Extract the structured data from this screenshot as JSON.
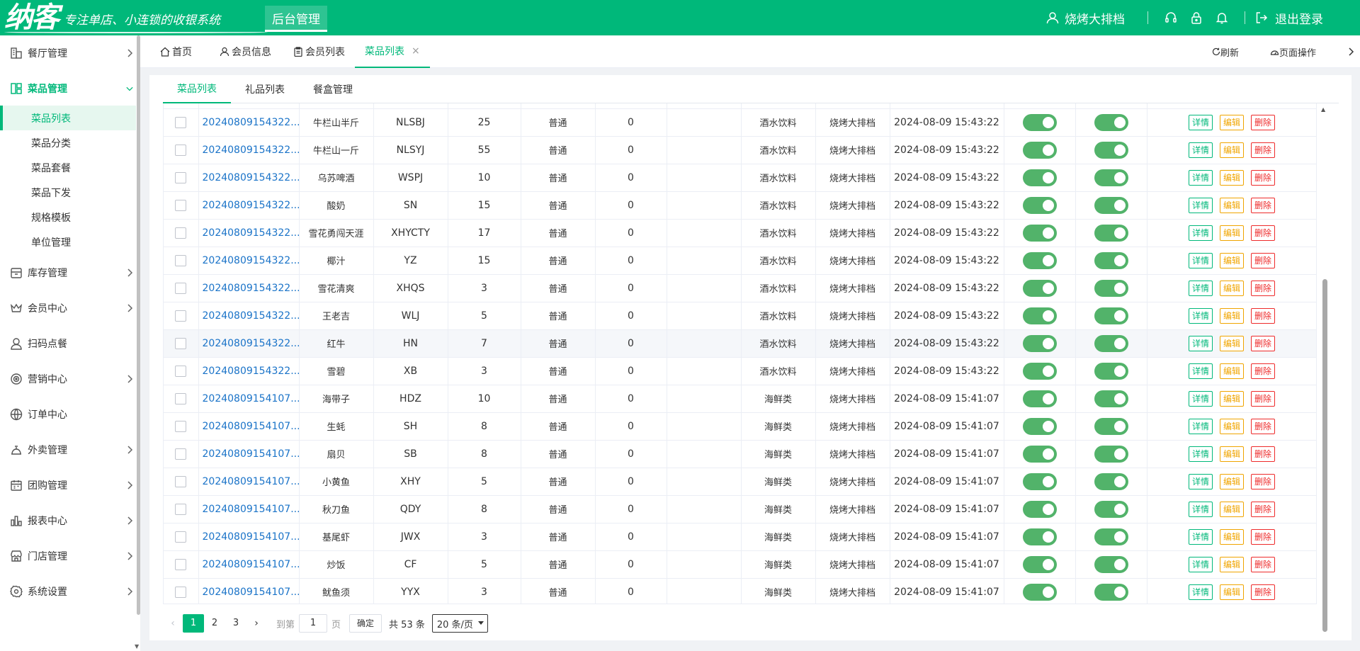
{
  "header": {
    "logo": "纳客",
    "slogan": "专注单店、小连锁的收银系统",
    "admin_label": "后台管理",
    "username": "烧烤大排档",
    "logout": "退出登录"
  },
  "sidebar": {
    "items": [
      {
        "label": "餐厅管理",
        "icon": "building-icon",
        "expanded": false
      },
      {
        "label": "菜品管理",
        "icon": "layout-icon",
        "expanded": true
      },
      {
        "label": "库存管理",
        "icon": "box-icon",
        "expanded": false
      },
      {
        "label": "会员中心",
        "icon": "crown-icon",
        "expanded": false
      },
      {
        "label": "扫码点餐",
        "icon": "user-icon",
        "expanded": false
      },
      {
        "label": "营销中心",
        "icon": "target-icon",
        "expanded": false
      },
      {
        "label": "订单中心",
        "icon": "globe-icon",
        "expanded": false
      },
      {
        "label": "外卖管理",
        "icon": "delivery-icon",
        "expanded": false
      },
      {
        "label": "团购管理",
        "icon": "calendar-icon",
        "expanded": false
      },
      {
        "label": "报表中心",
        "icon": "bar-chart-icon",
        "expanded": false
      },
      {
        "label": "门店管理",
        "icon": "store-icon",
        "expanded": false
      },
      {
        "label": "系统设置",
        "icon": "gear-icon",
        "expanded": false
      }
    ],
    "sub_items": [
      "菜品列表",
      "菜品分类",
      "菜品套餐",
      "菜品下发",
      "规格模板",
      "单位管理"
    ],
    "active_sub": "菜品列表"
  },
  "tabs": {
    "items": [
      {
        "label": "首页",
        "icon": "home-icon"
      },
      {
        "label": "会员信息",
        "icon": "user-icon"
      },
      {
        "label": "会员列表",
        "icon": "clipboard-icon"
      },
      {
        "label": "菜品列表",
        "icon": "",
        "active": true,
        "close": "×"
      }
    ],
    "refresh": "刷新",
    "page_ops": "页面操作"
  },
  "subtabs": [
    "菜品列表",
    "礼品列表",
    "餐盒管理"
  ],
  "table": {
    "rows": [
      {
        "code": "20240809154322...",
        "name": "牛栏山半斤",
        "abbr": "NLSBJ",
        "qty": "25",
        "type": "普通",
        "zero": "0",
        "extra": "",
        "category": "酒水饮料",
        "store": "烧烤大排档",
        "time": "2024-08-09 15:43:22"
      },
      {
        "code": "20240809154322...",
        "name": "牛栏山一斤",
        "abbr": "NLSYJ",
        "qty": "55",
        "type": "普通",
        "zero": "0",
        "extra": "",
        "category": "酒水饮料",
        "store": "烧烤大排档",
        "time": "2024-08-09 15:43:22"
      },
      {
        "code": "20240809154322...",
        "name": "乌苏啤酒",
        "abbr": "WSPJ",
        "qty": "10",
        "type": "普通",
        "zero": "0",
        "extra": "",
        "category": "酒水饮料",
        "store": "烧烤大排档",
        "time": "2024-08-09 15:43:22"
      },
      {
        "code": "20240809154322...",
        "name": "酸奶",
        "abbr": "SN",
        "qty": "15",
        "type": "普通",
        "zero": "0",
        "extra": "",
        "category": "酒水饮料",
        "store": "烧烤大排档",
        "time": "2024-08-09 15:43:22"
      },
      {
        "code": "20240809154322...",
        "name": "雪花勇闯天涯",
        "abbr": "XHYCTY",
        "qty": "17",
        "type": "普通",
        "zero": "0",
        "extra": "",
        "category": "酒水饮料",
        "store": "烧烤大排档",
        "time": "2024-08-09 15:43:22"
      },
      {
        "code": "20240809154322...",
        "name": "椰汁",
        "abbr": "YZ",
        "qty": "15",
        "type": "普通",
        "zero": "0",
        "extra": "",
        "category": "酒水饮料",
        "store": "烧烤大排档",
        "time": "2024-08-09 15:43:22"
      },
      {
        "code": "20240809154322...",
        "name": "雪花清爽",
        "abbr": "XHQS",
        "qty": "3",
        "type": "普通",
        "zero": "0",
        "extra": "",
        "category": "酒水饮料",
        "store": "烧烤大排档",
        "time": "2024-08-09 15:43:22"
      },
      {
        "code": "20240809154322...",
        "name": "王老吉",
        "abbr": "WLJ",
        "qty": "5",
        "type": "普通",
        "zero": "0",
        "extra": "",
        "category": "酒水饮料",
        "store": "烧烤大排档",
        "time": "2024-08-09 15:43:22"
      },
      {
        "code": "20240809154322...",
        "name": "红牛",
        "abbr": "HN",
        "qty": "7",
        "type": "普通",
        "zero": "0",
        "extra": "",
        "category": "酒水饮料",
        "store": "烧烤大排档",
        "time": "2024-08-09 15:43:22",
        "hover": true
      },
      {
        "code": "20240809154322...",
        "name": "雪碧",
        "abbr": "XB",
        "qty": "3",
        "type": "普通",
        "zero": "0",
        "extra": "",
        "category": "酒水饮料",
        "store": "烧烤大排档",
        "time": "2024-08-09 15:43:22"
      },
      {
        "code": "20240809154107...",
        "name": "海带子",
        "abbr": "HDZ",
        "qty": "10",
        "type": "普通",
        "zero": "0",
        "extra": "",
        "category": "海鲜类",
        "store": "烧烤大排档",
        "time": "2024-08-09 15:41:07"
      },
      {
        "code": "20240809154107...",
        "name": "生蚝",
        "abbr": "SH",
        "qty": "8",
        "type": "普通",
        "zero": "0",
        "extra": "",
        "category": "海鲜类",
        "store": "烧烤大排档",
        "time": "2024-08-09 15:41:07"
      },
      {
        "code": "20240809154107...",
        "name": "扇贝",
        "abbr": "SB",
        "qty": "8",
        "type": "普通",
        "zero": "0",
        "extra": "",
        "category": "海鲜类",
        "store": "烧烤大排档",
        "time": "2024-08-09 15:41:07"
      },
      {
        "code": "20240809154107...",
        "name": "小黄鱼",
        "abbr": "XHY",
        "qty": "5",
        "type": "普通",
        "zero": "0",
        "extra": "",
        "category": "海鲜类",
        "store": "烧烤大排档",
        "time": "2024-08-09 15:41:07"
      },
      {
        "code": "20240809154107...",
        "name": "秋刀鱼",
        "abbr": "QDY",
        "qty": "8",
        "type": "普通",
        "zero": "0",
        "extra": "",
        "category": "海鲜类",
        "store": "烧烤大排档",
        "time": "2024-08-09 15:41:07"
      },
      {
        "code": "20240809154107...",
        "name": "基尾虾",
        "abbr": "JWX",
        "qty": "3",
        "type": "普通",
        "zero": "0",
        "extra": "",
        "category": "海鲜类",
        "store": "烧烤大排档",
        "time": "2024-08-09 15:41:07"
      },
      {
        "code": "20240809154107...",
        "name": "炒饭",
        "abbr": "CF",
        "qty": "5",
        "type": "普通",
        "zero": "0",
        "extra": "",
        "category": "海鲜类",
        "store": "烧烤大排档",
        "time": "2024-08-09 15:41:07"
      },
      {
        "code": "20240809154107...",
        "name": "鱿鱼须",
        "abbr": "YYX",
        "qty": "3",
        "type": "普通",
        "zero": "0",
        "extra": "",
        "category": "海鲜类",
        "store": "烧烤大排档",
        "time": "2024-08-09 15:41:07"
      }
    ],
    "actions": {
      "detail": "详情",
      "edit": "编辑",
      "delete": "删除"
    }
  },
  "pagination": {
    "pages": [
      "1",
      "2",
      "3"
    ],
    "current": "1",
    "goto_label": "到第",
    "goto_value": "1",
    "page_label": "页",
    "confirm": "确定",
    "total": "共 53 条",
    "page_size": "20 条/页"
  },
  "colors": {
    "brand": "#00b87a",
    "link": "#1a73c8",
    "switch_on": "#52b36a",
    "edit": "#f0a500",
    "delete": "#ee2b2b"
  }
}
